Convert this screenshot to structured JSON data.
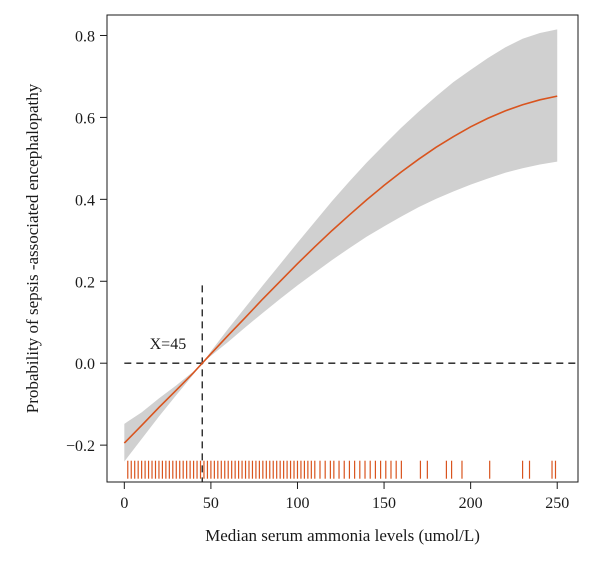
{
  "chart_data": {
    "type": "line",
    "title": "",
    "xlabel": "Median serum ammonia levels (umol/L)",
    "ylabel": "Probability of sepsis -associated encephalopathy",
    "xlim": [
      -10,
      262
    ],
    "ylim": [
      -0.29,
      0.85
    ],
    "xticks": [
      0,
      50,
      100,
      150,
      200,
      250
    ],
    "yticks": [
      -0.2,
      0.0,
      0.2,
      0.4,
      0.6,
      0.8
    ],
    "xtick_labels": [
      "0",
      "50",
      "100",
      "150",
      "200",
      "250"
    ],
    "ytick_labels": [
      "−0.2",
      "0.0",
      "0.2",
      "0.4",
      "0.6",
      "0.8"
    ],
    "series": [
      {
        "type": "line",
        "color": "#d9541e",
        "x": [
          0,
          10,
          20,
          30,
          40,
          45,
          50,
          60,
          70,
          80,
          90,
          100,
          110,
          120,
          130,
          140,
          150,
          160,
          170,
          180,
          190,
          200,
          210,
          220,
          230,
          240,
          250
        ],
        "y": [
          -0.195,
          -0.152,
          -0.108,
          -0.066,
          -0.023,
          0.0,
          0.023,
          0.068,
          0.112,
          0.157,
          0.2,
          0.243,
          0.284,
          0.324,
          0.362,
          0.399,
          0.434,
          0.467,
          0.498,
          0.527,
          0.553,
          0.577,
          0.598,
          0.616,
          0.631,
          0.643,
          0.652
        ]
      }
    ],
    "confidence_band": {
      "color": "#d0d0d0",
      "x": [
        0,
        10,
        20,
        30,
        40,
        45,
        50,
        60,
        70,
        80,
        90,
        100,
        110,
        120,
        130,
        140,
        150,
        160,
        170,
        180,
        190,
        200,
        210,
        220,
        230,
        240,
        250
      ],
      "lower": [
        -0.24,
        -0.185,
        -0.13,
        -0.078,
        -0.027,
        0.0,
        0.018,
        0.052,
        0.088,
        0.123,
        0.157,
        0.19,
        0.221,
        0.252,
        0.281,
        0.309,
        0.334,
        0.358,
        0.381,
        0.401,
        0.419,
        0.436,
        0.451,
        0.465,
        0.476,
        0.485,
        0.492
      ],
      "upper": [
        -0.148,
        -0.12,
        -0.086,
        -0.054,
        -0.02,
        0.0,
        0.029,
        0.084,
        0.137,
        0.19,
        0.242,
        0.294,
        0.345,
        0.396,
        0.444,
        0.49,
        0.533,
        0.575,
        0.614,
        0.651,
        0.686,
        0.716,
        0.745,
        0.771,
        0.792,
        0.806,
        0.815
      ]
    },
    "reference_lines": {
      "horizontal_y": 0.0,
      "vertical_x": 45,
      "vertical_top_y": 0.19,
      "style": "dashed"
    },
    "annotation": {
      "text": "X=45",
      "x": 10,
      "y": 0.035
    },
    "rug": {
      "color": "#d9541e",
      "y": -0.26,
      "x": [
        2,
        4,
        6,
        8,
        10,
        12,
        14,
        16,
        18,
        20,
        22,
        24,
        26,
        28,
        30,
        32,
        34,
        36,
        38,
        40,
        42,
        44,
        46,
        48,
        50,
        52,
        54,
        56,
        58,
        60,
        62,
        64,
        66,
        68,
        70,
        72,
        74,
        76,
        78,
        80,
        82,
        84,
        86,
        88,
        90,
        92,
        94,
        96,
        98,
        100,
        102,
        104,
        106,
        108,
        110,
        113,
        116,
        119,
        121,
        124,
        127,
        130,
        133,
        136,
        139,
        142,
        145,
        148,
        151,
        154,
        157,
        160,
        171,
        175,
        186,
        189,
        195,
        211,
        230,
        234,
        247,
        249
      ]
    }
  }
}
